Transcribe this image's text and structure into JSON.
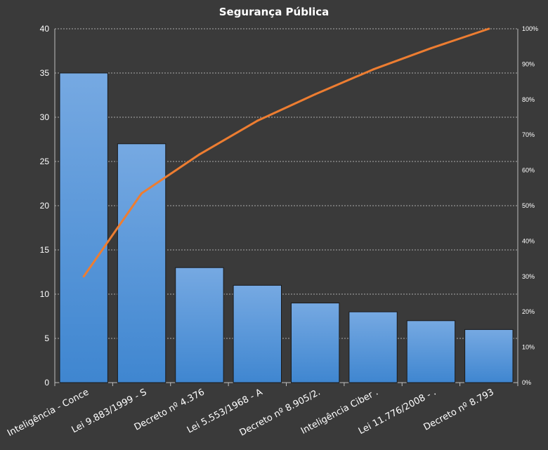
{
  "chart_data": {
    "type": "bar",
    "title": "Segurança Pública",
    "categories": [
      "Inteligência - Conce",
      "Lei 9.883/1999 - S",
      "Decreto nº 4.376",
      "Lei 5.553/1968 - A",
      "Decreto nº 8.905/2.",
      "Inteligência Ciber .",
      "Lei 11.776/2008 - .",
      "Decreto nº 8.793"
    ],
    "series": [
      {
        "type": "bar",
        "values": [
          35,
          27,
          13,
          11,
          9,
          8,
          7,
          6
        ]
      },
      {
        "type": "line",
        "axis": "right",
        "values": [
          30,
          53.5,
          64.5,
          74,
          81.5,
          88.5,
          94.5,
          100
        ]
      }
    ],
    "ylim": [
      0,
      40
    ],
    "yticks": [
      "0",
      "5",
      "10",
      "15",
      "20",
      "25",
      "30",
      "35",
      "40"
    ],
    "y2lim": [
      0,
      100
    ],
    "y2ticks": [
      "0%",
      "10%",
      "20%",
      "30%",
      "40%",
      "50%",
      "60%",
      "70%",
      "80%",
      "90%",
      "100%"
    ],
    "grid": true,
    "colors": {
      "bar": "#4a8fd6",
      "line": "#ed7d31",
      "background": "#3a3a3a"
    }
  }
}
